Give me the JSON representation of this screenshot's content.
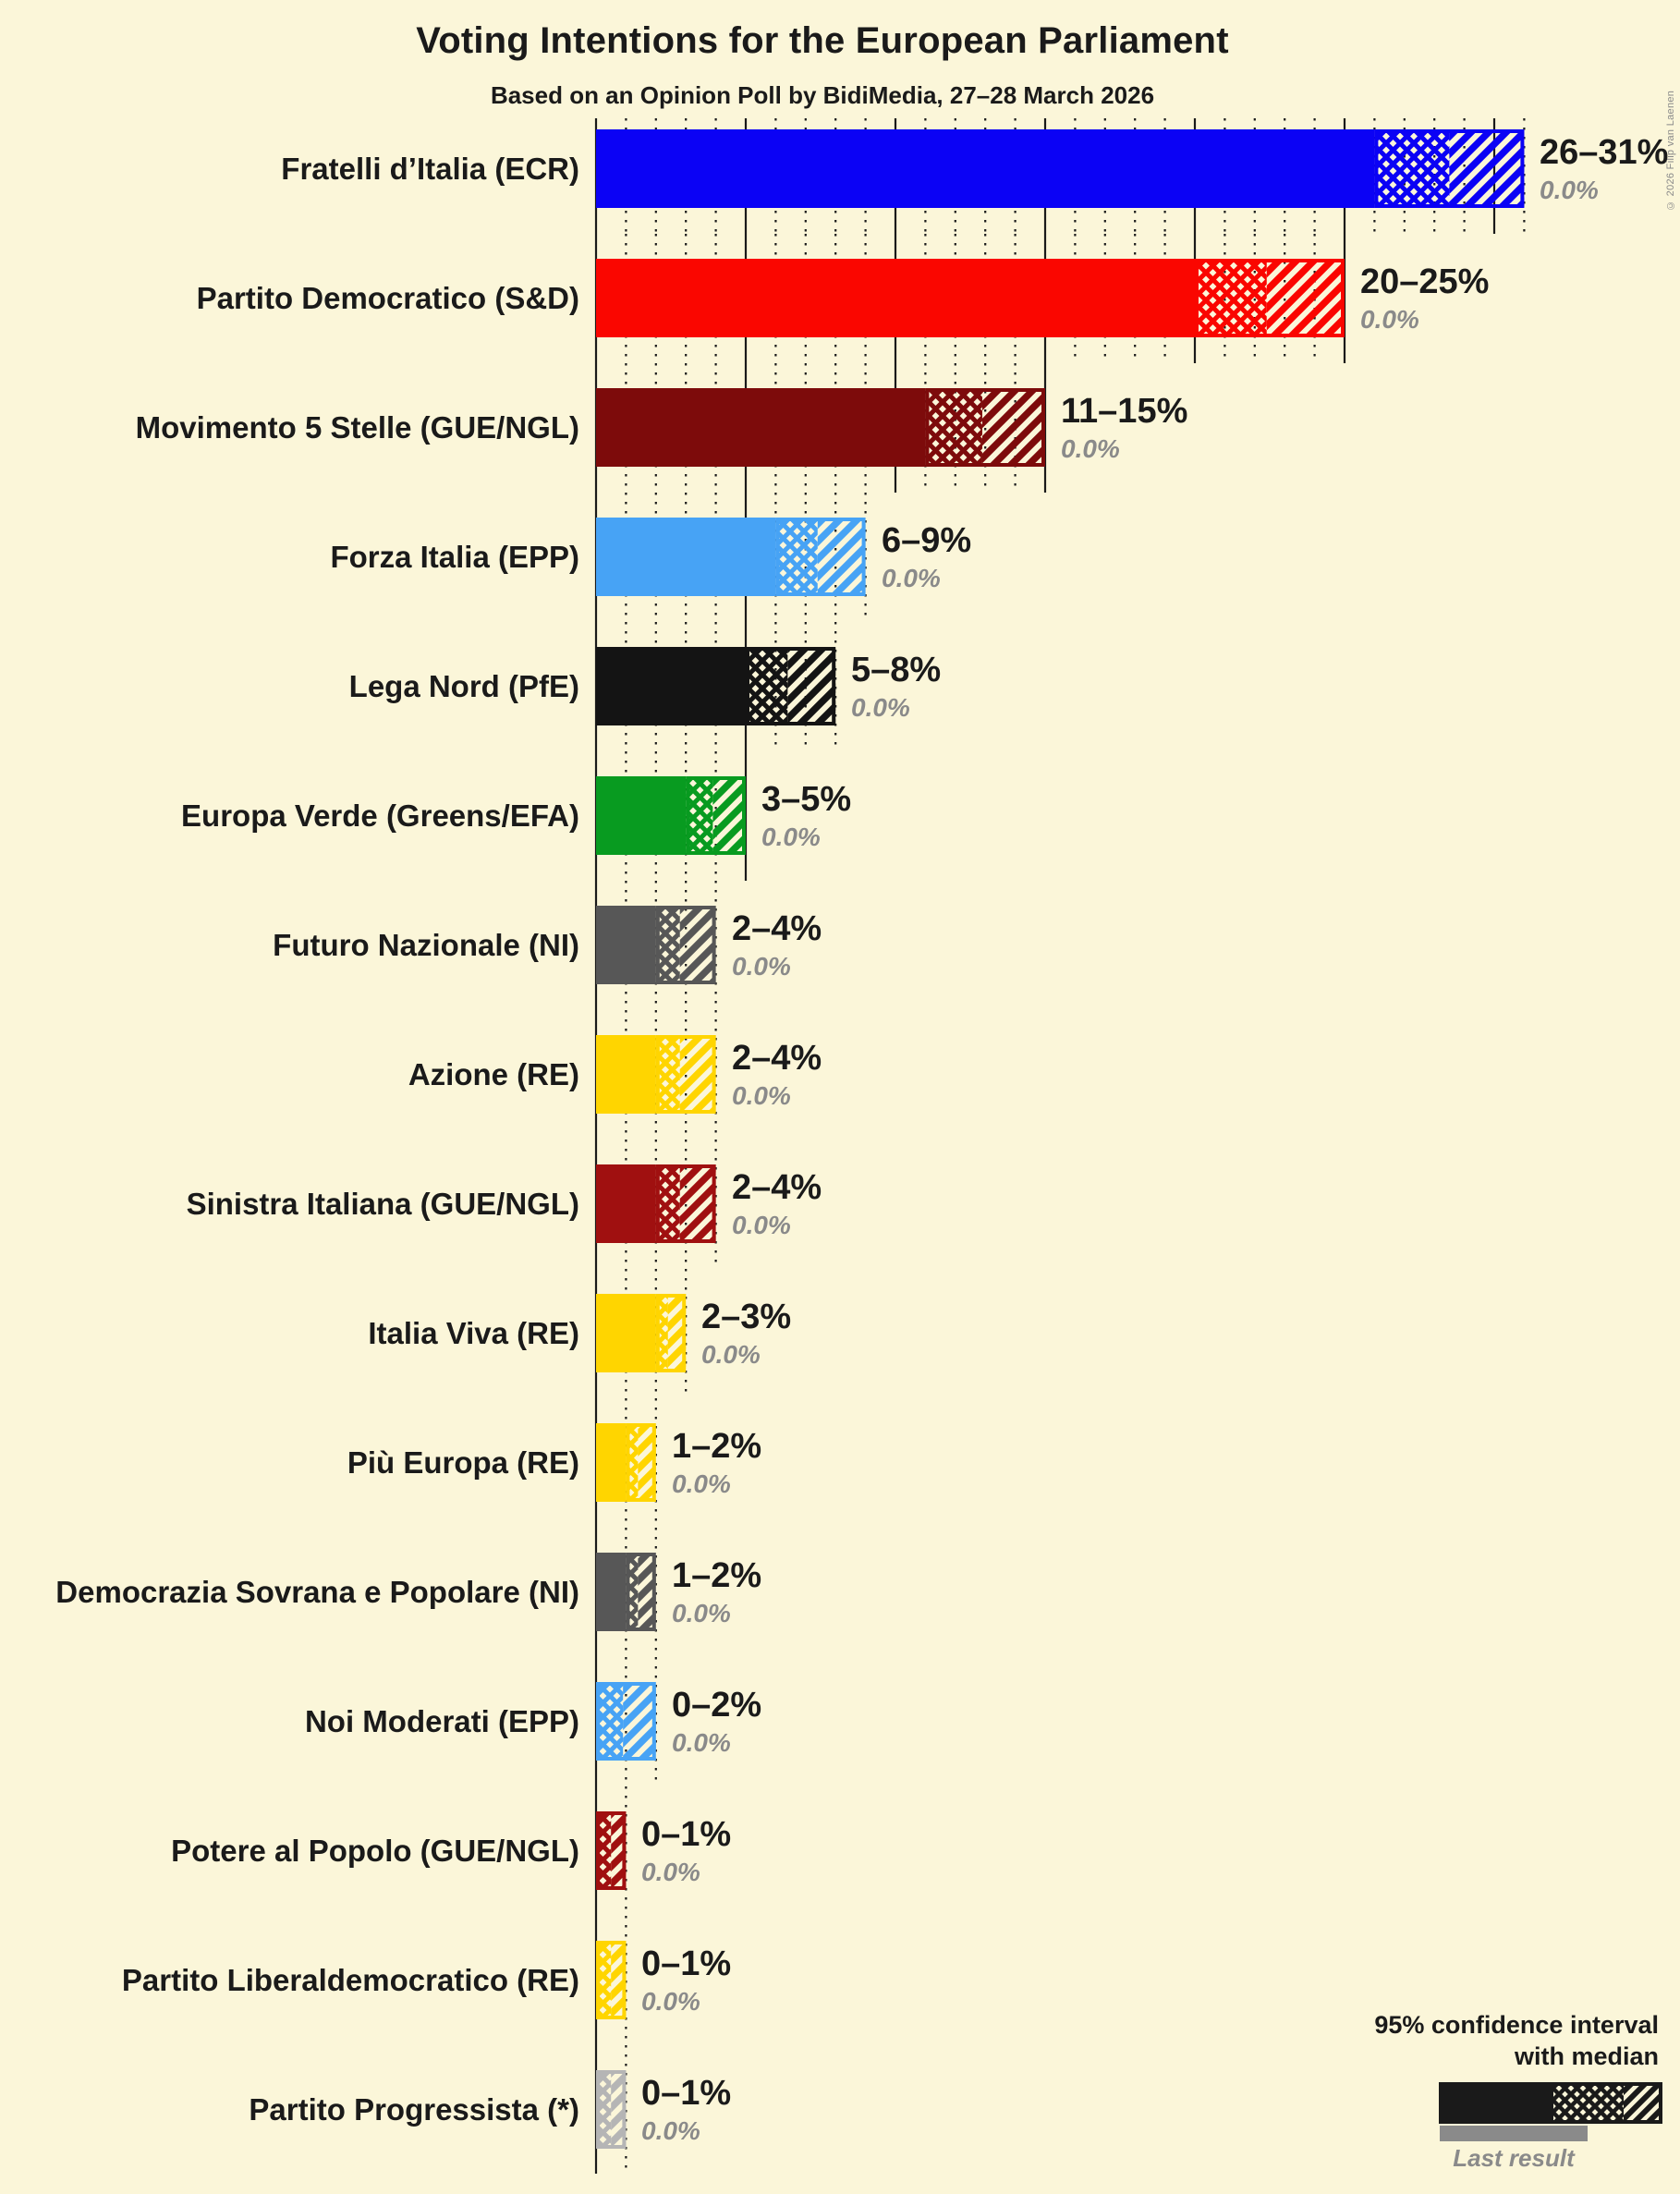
{
  "chart_data": {
    "type": "bar",
    "title": "Voting Intentions for the European Parliament",
    "subtitle": "Based on an Opinion Poll by BidiMedia, 27–28 March 2026",
    "copyright": "© 2026 Filip van Laenen",
    "xlabel": "",
    "ylabel": "",
    "x_axis": {
      "unit": "%",
      "min": 0,
      "max": 31,
      "minor_gridline_step": 1,
      "major_gridline_step": 5,
      "grid": "on"
    },
    "legend": {
      "position": "bottom-right",
      "ci_label_line1": "95% confidence interval",
      "ci_label_line2": "with median",
      "last_result_label": "Last result",
      "sample_color": "#1a1a1a",
      "last_result_color": "#8a8a8a"
    },
    "colors": {
      "background": "#fbf6d9",
      "text": "#1a1a1a",
      "muted_text": "#8a8a8a",
      "gridline": "#1a1a1a"
    },
    "series_note": "Each bar: solid = below 95% CI low, crosshatch = CI low to median, diagonal = median to CI high; last result shown as gray value (0.0%)",
    "parties": [
      {
        "name": "Fratelli d’Italia (ECR)",
        "color": "#0b02f5",
        "ci_low": 26,
        "median": 28.5,
        "ci_high": 31,
        "range_label": "26–31%",
        "last_result": "0.0%"
      },
      {
        "name": "Partito Democratico (S&D)",
        "color": "#fa0600",
        "ci_low": 20,
        "median": 22.4,
        "ci_high": 25,
        "range_label": "20–25%",
        "last_result": "0.0%"
      },
      {
        "name": "Movimento 5 Stelle (GUE/NGL)",
        "color": "#7d0b0b",
        "ci_low": 11,
        "median": 12.9,
        "ci_high": 15,
        "range_label": "11–15%",
        "last_result": "0.0%"
      },
      {
        "name": "Forza Italia (EPP)",
        "color": "#47a3f5",
        "ci_low": 6,
        "median": 7.4,
        "ci_high": 9,
        "range_label": "6–9%",
        "last_result": "0.0%"
      },
      {
        "name": "Lega Nord (PfE)",
        "color": "#141414",
        "ci_low": 5,
        "median": 6.4,
        "ci_high": 8,
        "range_label": "5–8%",
        "last_result": "0.0%"
      },
      {
        "name": "Europa Verde (Greens/EFA)",
        "color": "#089b20",
        "ci_low": 3,
        "median": 3.9,
        "ci_high": 5,
        "range_label": "3–5%",
        "last_result": "0.0%"
      },
      {
        "name": "Futuro Nazionale (NI)",
        "color": "#575757",
        "ci_low": 2,
        "median": 2.8,
        "ci_high": 4,
        "range_label": "2–4%",
        "last_result": "0.0%"
      },
      {
        "name": "Azione (RE)",
        "color": "#ffd500",
        "ci_low": 2,
        "median": 2.8,
        "ci_high": 4,
        "range_label": "2–4%",
        "last_result": "0.0%"
      },
      {
        "name": "Sinistra Italiana (GUE/NGL)",
        "color": "#a01010",
        "ci_low": 2,
        "median": 2.8,
        "ci_high": 4,
        "range_label": "2–4%",
        "last_result": "0.0%"
      },
      {
        "name": "Italia Viva (RE)",
        "color": "#ffd500",
        "ci_low": 2,
        "median": 2.4,
        "ci_high": 3,
        "range_label": "2–3%",
        "last_result": "0.0%"
      },
      {
        "name": "Più Europa (RE)",
        "color": "#ffd500",
        "ci_low": 1,
        "median": 1.4,
        "ci_high": 2,
        "range_label": "1–2%",
        "last_result": "0.0%"
      },
      {
        "name": "Democrazia Sovrana e Popolare (NI)",
        "color": "#575757",
        "ci_low": 1,
        "median": 1.4,
        "ci_high": 2,
        "range_label": "1–2%",
        "last_result": "0.0%"
      },
      {
        "name": "Noi Moderati (EPP)",
        "color": "#47a3f5",
        "ci_low": 0,
        "median": 0.9,
        "ci_high": 2,
        "range_label": "0–2%",
        "last_result": "0.0%"
      },
      {
        "name": "Potere al Popolo (GUE/NGL)",
        "color": "#a01010",
        "ci_low": 0,
        "median": 0.5,
        "ci_high": 1,
        "range_label": "0–1%",
        "last_result": "0.0%"
      },
      {
        "name": "Partito Liberaldemocratico (RE)",
        "color": "#ffd500",
        "ci_low": 0,
        "median": 0.5,
        "ci_high": 1,
        "range_label": "0–1%",
        "last_result": "0.0%"
      },
      {
        "name": "Partito Progressista (*)",
        "color": "#b5b5b5",
        "ci_low": 0,
        "median": 0.5,
        "ci_high": 1,
        "range_label": "0–1%",
        "last_result": "0.0%"
      }
    ]
  }
}
